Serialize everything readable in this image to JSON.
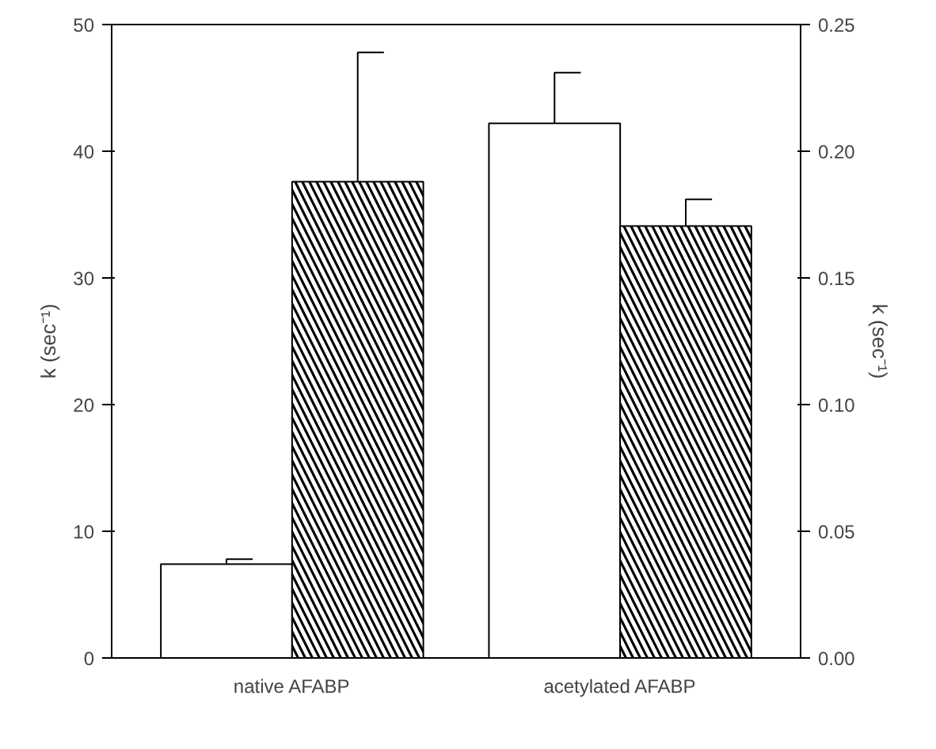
{
  "chart_data": {
    "type": "bar",
    "categories": [
      "native AFABP",
      "acetylated AFABP"
    ],
    "series": [
      {
        "color": "#ffffff",
        "values": [
          7.4,
          42.2
        ],
        "errors": [
          [
            7.4,
            7.8
          ],
          [
            42.2,
            46.2
          ]
        ]
      },
      {
        "color": "#ffffff",
        "values": [
          37.6,
          34.1
        ],
        "errors": [
          [
            37.6,
            47.8
          ],
          [
            34.1,
            36.2
          ]
        ]
      }
    ],
    "ylabel": "k (sec⁻¹)",
    "y2label": "k (sec⁻¹)",
    "ylim": [
      0,
      50
    ],
    "yticks": [
      0,
      10,
      20,
      30,
      40,
      50
    ],
    "y2lim": [
      0,
      0.25
    ],
    "y2ticks": [
      {
        "value": 0,
        "label": "0.00"
      },
      {
        "value": 0.05,
        "label": "0.05"
      },
      {
        "value": 0.1,
        "label": "0.10"
      },
      {
        "value": 0.15,
        "label": "0.15"
      },
      {
        "value": 0.2,
        "label": "0.20"
      },
      {
        "value": 0.25,
        "label": "0.25"
      }
    ],
    "grid": false
  }
}
